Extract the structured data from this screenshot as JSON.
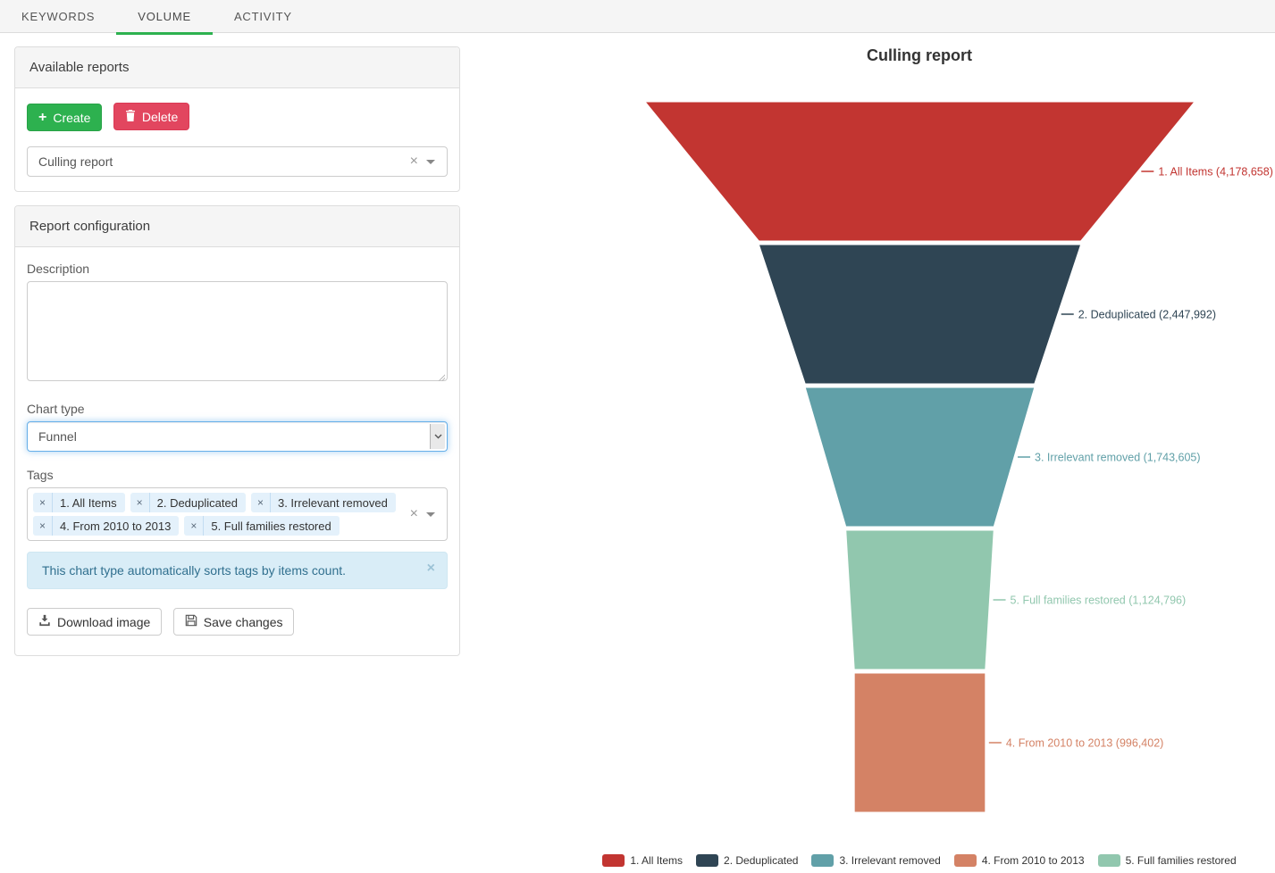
{
  "tabs": {
    "items": [
      {
        "label": "KEYWORDS",
        "active": false
      },
      {
        "label": "VOLUME",
        "active": true
      },
      {
        "label": "ACTIVITY",
        "active": false
      }
    ]
  },
  "available_reports": {
    "title": "Available reports",
    "create_label": "Create",
    "delete_label": "Delete",
    "selected_report": "Culling report"
  },
  "report_config": {
    "title": "Report configuration",
    "description_label": "Description",
    "description_value": "",
    "chart_type_label": "Chart type",
    "chart_type_value": "Funnel",
    "tags_label": "Tags",
    "tags": [
      "1. All Items",
      "2. Deduplicated",
      "3. Irrelevant removed",
      "4. From 2010 to 2013",
      "5. Full families restored"
    ],
    "info_message": "This chart type automatically sorts tags by items count.",
    "download_label": "Download image",
    "save_label": "Save changes"
  },
  "chart_data": {
    "type": "funnel",
    "title": "Culling report",
    "sort": "descending by items count",
    "legend_position": "bottom",
    "items": [
      {
        "label": "1. All Items",
        "value": 4178658,
        "display": "1. All Items (4,178,658)",
        "color": "#c23531"
      },
      {
        "label": "2. Deduplicated",
        "value": 2447992,
        "display": "2. Deduplicated (2,447,992)",
        "color": "#2f4554"
      },
      {
        "label": "3. Irrelevant removed",
        "value": 1743605,
        "display": "3. Irrelevant removed (1,743,605)",
        "color": "#61a0a8"
      },
      {
        "label": "5. Full families restored",
        "value": 1124796,
        "display": "5. Full families restored (1,124,796)",
        "color": "#91c7ae"
      },
      {
        "label": "4. From 2010 to 2013",
        "value": 996402,
        "display": "4. From 2010 to 2013 (996,402)",
        "color": "#d48265"
      }
    ],
    "legend": [
      {
        "label": "1. All Items",
        "color": "#c23531"
      },
      {
        "label": "2. Deduplicated",
        "color": "#2f4554"
      },
      {
        "label": "3. Irrelevant removed",
        "color": "#61a0a8"
      },
      {
        "label": "4. From 2010 to 2013",
        "color": "#d48265"
      },
      {
        "label": "5. Full families restored",
        "color": "#91c7ae"
      }
    ]
  },
  "colors": {
    "accent_green": "#2db14f",
    "danger_red": "#e2465f",
    "active_tab_underline": "#2db14f",
    "focus_blue": "#66afe9",
    "alert_bg": "#d9edf7",
    "alert_text": "#31708f",
    "tag_bg": "#e4f1fb"
  }
}
